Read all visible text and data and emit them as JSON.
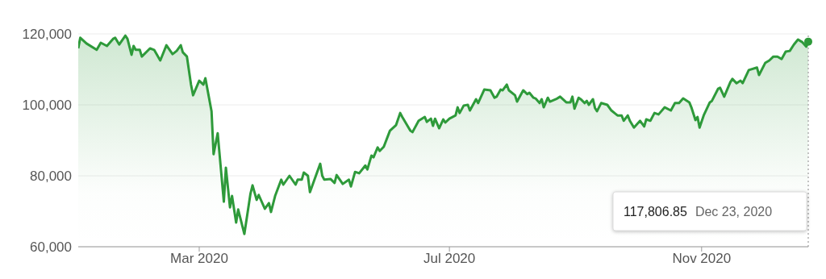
{
  "chart_data": {
    "type": "area",
    "color": "#2e9a3a",
    "x": [
      "2020-01-02",
      "2020-01-03",
      "2020-01-06",
      "2020-01-11",
      "2020-01-13",
      "2020-01-16",
      "2020-01-19",
      "2020-01-20",
      "2020-01-22",
      "2020-01-25",
      "2020-01-26",
      "2020-01-28",
      "2020-01-29",
      "2020-01-30",
      "2020-02-01",
      "2020-02-02",
      "2020-02-06",
      "2020-02-08",
      "2020-02-11",
      "2020-02-14",
      "2020-02-17",
      "2020-02-19",
      "2020-02-21",
      "2020-02-22",
      "2020-02-24",
      "2020-02-26",
      "2020-02-27",
      "2020-03-01",
      "2020-03-03",
      "2020-03-04",
      "2020-03-07",
      "2020-03-08",
      "2020-03-10",
      "2020-03-13",
      "2020-03-14",
      "2020-03-16",
      "2020-03-17",
      "2020-03-19",
      "2020-03-20",
      "2020-03-23",
      "2020-03-26",
      "2020-03-27",
      "2020-03-29",
      "2020-03-30",
      "2020-04-02",
      "2020-04-04",
      "2020-04-05",
      "2020-04-07",
      "2020-04-10",
      "2020-04-11",
      "2020-04-14",
      "2020-04-17",
      "2020-04-18",
      "2020-04-20",
      "2020-04-21",
      "2020-04-23",
      "2020-04-24",
      "2020-04-29",
      "2020-04-30",
      "2020-05-01",
      "2020-05-04",
      "2020-05-06",
      "2020-05-07",
      "2020-05-10",
      "2020-05-13",
      "2020-05-14",
      "2020-05-16",
      "2020-05-18",
      "2020-05-21",
      "2020-05-22",
      "2020-05-24",
      "2020-05-25",
      "2020-05-27",
      "2020-05-28",
      "2020-05-30",
      "2020-06-02",
      "2020-06-05",
      "2020-06-07",
      "2020-06-08",
      "2020-06-12",
      "2020-06-13",
      "2020-06-16",
      "2020-06-19",
      "2020-06-20",
      "2020-06-22",
      "2020-06-23",
      "2020-06-24",
      "2020-06-26",
      "2020-06-28",
      "2020-06-29",
      "2020-07-01",
      "2020-07-04",
      "2020-07-05",
      "2020-07-06",
      "2020-07-08",
      "2020-07-10",
      "2020-07-11",
      "2020-07-14",
      "2020-07-15",
      "2020-07-18",
      "2020-07-21",
      "2020-07-23",
      "2020-07-24",
      "2020-07-26",
      "2020-07-27",
      "2020-07-29",
      "2020-07-30",
      "2020-08-02",
      "2020-08-03",
      "2020-08-06",
      "2020-08-08",
      "2020-08-09",
      "2020-08-11",
      "2020-08-12",
      "2020-08-14",
      "2020-08-15",
      "2020-08-16",
      "2020-08-18",
      "2020-08-19",
      "2020-08-22",
      "2020-08-24",
      "2020-08-27",
      "2020-08-29",
      "2020-08-30",
      "2020-08-31",
      "2020-09-02",
      "2020-09-03",
      "2020-09-05",
      "2020-09-06",
      "2020-09-07",
      "2020-09-09",
      "2020-09-10",
      "2020-09-11",
      "2020-09-13",
      "2020-09-16",
      "2020-09-18",
      "2020-09-21",
      "2020-09-23",
      "2020-09-24",
      "2020-09-26",
      "2020-09-27",
      "2020-09-29",
      "2020-10-02",
      "2020-10-04",
      "2020-10-05",
      "2020-10-07",
      "2020-10-09",
      "2020-10-11",
      "2020-10-14",
      "2020-10-17",
      "2020-10-19",
      "2020-10-21",
      "2020-10-23",
      "2020-10-26",
      "2020-10-27",
      "2020-10-29",
      "2020-10-30",
      "2020-10-31",
      "2020-11-02",
      "2020-11-05",
      "2020-11-06",
      "2020-11-09",
      "2020-11-10",
      "2020-11-12",
      "2020-11-15",
      "2020-11-16",
      "2020-11-18",
      "2020-11-20",
      "2020-11-21",
      "2020-11-24",
      "2020-11-28",
      "2020-11-29",
      "2020-12-02",
      "2020-12-04",
      "2020-12-06",
      "2020-12-08",
      "2020-12-10",
      "2020-12-12",
      "2020-12-14",
      "2020-12-16",
      "2020-12-18",
      "2020-12-20",
      "2020-12-22",
      "2020-12-23"
    ],
    "values": [
      115900,
      118900,
      117300,
      115500,
      117500,
      116600,
      118600,
      118900,
      117000,
      119500,
      118600,
      114100,
      116600,
      115500,
      115500,
      113600,
      115900,
      115500,
      112500,
      116800,
      114300,
      115200,
      116800,
      114800,
      113600,
      105700,
      102700,
      106800,
      105700,
      107500,
      98200,
      86100,
      92000,
      72700,
      82300,
      71100,
      74300,
      66800,
      70500,
      63600,
      75000,
      77300,
      73200,
      74600,
      70700,
      72300,
      69800,
      74300,
      78900,
      77500,
      80000,
      77500,
      78900,
      78900,
      80900,
      80000,
      75400,
      83400,
      80000,
      78900,
      79100,
      78000,
      80200,
      77700,
      78900,
      77000,
      81100,
      80700,
      82900,
      81800,
      85700,
      85200,
      88000,
      87000,
      88200,
      92700,
      94300,
      97700,
      96600,
      92700,
      92300,
      95500,
      96600,
      95200,
      96100,
      94100,
      96100,
      93400,
      95900,
      95000,
      96100,
      97000,
      99300,
      97700,
      99800,
      100000,
      98400,
      101600,
      100500,
      104300,
      104100,
      102000,
      102300,
      104300,
      104100,
      105700,
      104100,
      102700,
      100900,
      104100,
      103000,
      103400,
      102000,
      101800,
      100500,
      101600,
      99300,
      102000,
      100900,
      101600,
      102300,
      100700,
      100700,
      102300,
      98900,
      102000,
      101600,
      100500,
      101100,
      100000,
      101600,
      99100,
      98200,
      100500,
      100000,
      98400,
      97000,
      97000,
      95500,
      97000,
      95500,
      93600,
      95500,
      93900,
      95900,
      95500,
      97700,
      97300,
      99300,
      98400,
      100500,
      100500,
      101800,
      100700,
      99300,
      95700,
      96600,
      93600,
      97000,
      100700,
      101100,
      104500,
      104800,
      102300,
      106400,
      107300,
      106100,
      106800,
      106100,
      109800,
      110500,
      108400,
      111800,
      112500,
      113600,
      113600,
      112900,
      115000,
      115200,
      117000,
      118400,
      117700,
      116400,
      117806.85
    ],
    "xlim": [
      "2020-01-02",
      "2020-12-23"
    ],
    "xticks": [
      {
        "value": "2020-03-01",
        "label": "Mar 2020"
      },
      {
        "value": "2020-07-01",
        "label": "Jul 2020"
      },
      {
        "value": "2020-11-01",
        "label": "Nov 2020"
      }
    ],
    "ylim": [
      60000,
      120000
    ],
    "yticks": [
      {
        "value": 60000,
        "label": "60,000"
      },
      {
        "value": 80000,
        "label": "80,000"
      },
      {
        "value": 100000,
        "label": "100,000"
      },
      {
        "value": 120000,
        "label": "120,000"
      }
    ],
    "grid": "y",
    "ref_lines": [
      {
        "axis": "x",
        "value": "2020-12-23",
        "color": "#b0b0b0",
        "line_style": "dotted"
      }
    ],
    "annotations": [
      "117,806.85",
      "Dec 23, 2020"
    ]
  }
}
